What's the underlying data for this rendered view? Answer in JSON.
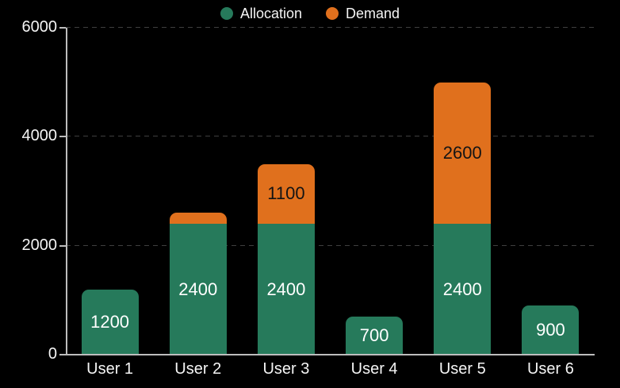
{
  "colors": {
    "background": "#000000",
    "allocation": "#267a5b",
    "demand": "#e0701d",
    "grid": "#3f3f3f",
    "axis": "#bdbdbd",
    "text": "#f5f5f5",
    "label_on_allocation": "#ffffff",
    "label_on_demand": "#141414"
  },
  "legend": {
    "items": [
      {
        "label": "Allocation",
        "color": "#267a5b"
      },
      {
        "label": "Demand",
        "color": "#e0701d"
      }
    ]
  },
  "chart_data": {
    "type": "bar",
    "stacked": true,
    "title": "",
    "xlabel": "",
    "ylabel": "",
    "categories": [
      "User 1",
      "User 2",
      "User 3",
      "User 4",
      "User 5",
      "User 6"
    ],
    "series": [
      {
        "name": "Allocation",
        "color": "#267a5b",
        "values": [
          1200,
          2400,
          2400,
          700,
          2400,
          900
        ],
        "labels": [
          "1200",
          "2400",
          "2400",
          "700",
          "2400",
          "900"
        ]
      },
      {
        "name": "Demand",
        "color": "#e0701d",
        "values": [
          0,
          200,
          1100,
          0,
          2600,
          0
        ],
        "labels": [
          "",
          "",
          "1100",
          "",
          "2600",
          ""
        ]
      }
    ],
    "ylim": [
      0,
      6000
    ],
    "yticks": [
      0,
      2000,
      4000,
      6000
    ],
    "ytick_labels": [
      "0",
      "2000",
      "4000",
      "6000"
    ],
    "grid": "dashed-horizontal",
    "legend_position": "top-center"
  }
}
